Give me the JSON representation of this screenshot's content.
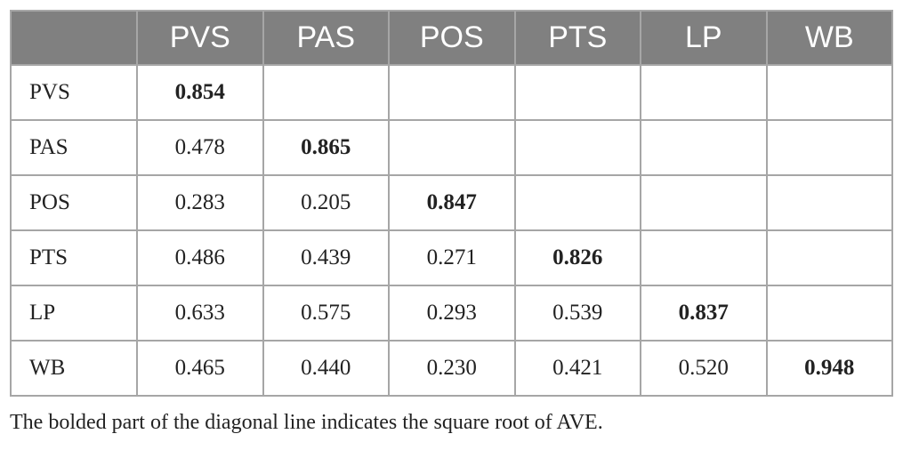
{
  "table": {
    "corner": "",
    "columns": [
      "PVS",
      "PAS",
      "POS",
      "PTS",
      "LP",
      "WB"
    ],
    "rows": [
      {
        "label": "PVS",
        "cells": [
          "0.854",
          "",
          "",
          "",
          "",
          ""
        ]
      },
      {
        "label": "PAS",
        "cells": [
          "0.478",
          "0.865",
          "",
          "",
          "",
          ""
        ]
      },
      {
        "label": "POS",
        "cells": [
          "0.283",
          "0.205",
          "0.847",
          "",
          "",
          ""
        ]
      },
      {
        "label": "PTS",
        "cells": [
          "0.486",
          "0.439",
          "0.271",
          "0.826",
          "",
          ""
        ]
      },
      {
        "label": "LP",
        "cells": [
          "0.633",
          "0.575",
          "0.293",
          "0.539",
          "0.837",
          ""
        ]
      },
      {
        "label": "WB",
        "cells": [
          "0.465",
          "0.440",
          "0.230",
          "0.421",
          "0.520",
          "0.948"
        ]
      }
    ]
  },
  "footnote": "The bolded part of the diagonal line indicates the square root of AVE."
}
